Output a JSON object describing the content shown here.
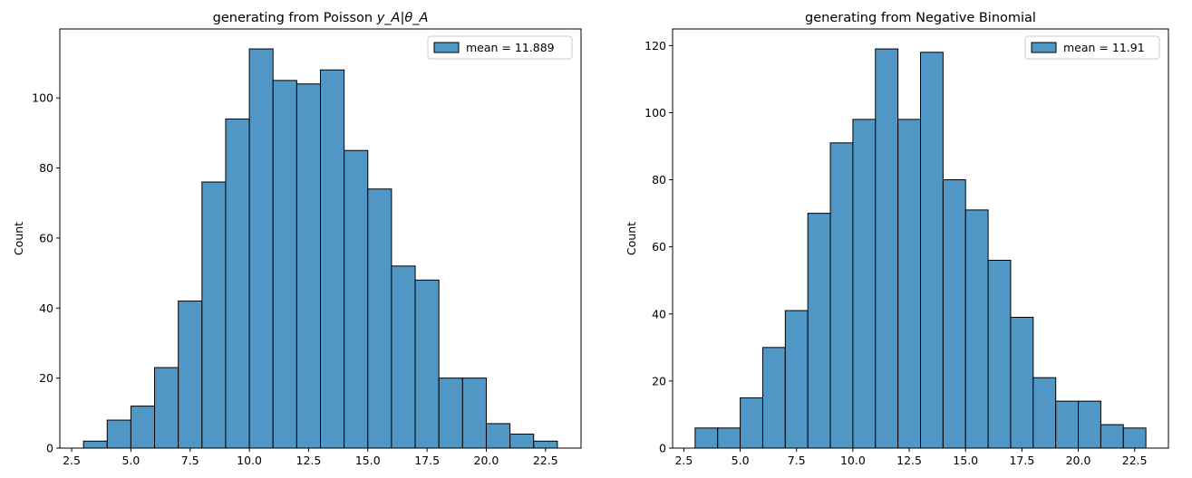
{
  "colors": {
    "bar_fill": "#5197c6",
    "bar_edge": "#000000",
    "axis": "#000000",
    "background": "#ffffff"
  },
  "chart_data": [
    {
      "type": "bar",
      "title_prefix": "generating from Poisson ",
      "title_math": "y_A|θ_A",
      "xlabel": "",
      "ylabel": "Count",
      "bin_start": 3,
      "bin_width": 1,
      "values": [
        2,
        8,
        12,
        23,
        42,
        76,
        94,
        114,
        105,
        104,
        108,
        85,
        74,
        52,
        48,
        20,
        20,
        7,
        4,
        2
      ],
      "xlim": [
        2.0,
        24.0
      ],
      "ylim": [
        0,
        119.7
      ],
      "xticks": [
        2.5,
        5.0,
        7.5,
        10.0,
        12.5,
        15.0,
        17.5,
        20.0,
        22.5
      ],
      "xtick_labels": [
        "2.5",
        "5.0",
        "7.5",
        "10.0",
        "12.5",
        "15.0",
        "17.5",
        "20.0",
        "22.5"
      ],
      "yticks": [
        0,
        20,
        40,
        60,
        80,
        100
      ],
      "ytick_labels": [
        "0",
        "20",
        "40",
        "60",
        "80",
        "100"
      ],
      "legend": {
        "label": "mean = 11.889",
        "placement": "top-right"
      },
      "grid": false
    },
    {
      "type": "bar",
      "title_prefix": "generating from Negative Binomial",
      "title_math": "",
      "xlabel": "",
      "ylabel": "Count",
      "bin_start": 3,
      "bin_width": 1,
      "values": [
        6,
        6,
        15,
        30,
        41,
        70,
        91,
        98,
        119,
        98,
        118,
        80,
        71,
        56,
        39,
        21,
        14,
        14,
        7,
        6
      ],
      "xlim": [
        2.0,
        24.0
      ],
      "ylim": [
        0,
        124.95
      ],
      "xticks": [
        2.5,
        5.0,
        7.5,
        10.0,
        12.5,
        15.0,
        17.5,
        20.0,
        22.5
      ],
      "xtick_labels": [
        "2.5",
        "5.0",
        "7.5",
        "10.0",
        "12.5",
        "15.0",
        "17.5",
        "20.0",
        "22.5"
      ],
      "yticks": [
        0,
        20,
        40,
        60,
        80,
        100,
        120
      ],
      "ytick_labels": [
        "0",
        "20",
        "40",
        "60",
        "80",
        "100",
        "120"
      ],
      "legend": {
        "label": "mean = 11.91",
        "placement": "top-right"
      },
      "grid": false
    }
  ]
}
